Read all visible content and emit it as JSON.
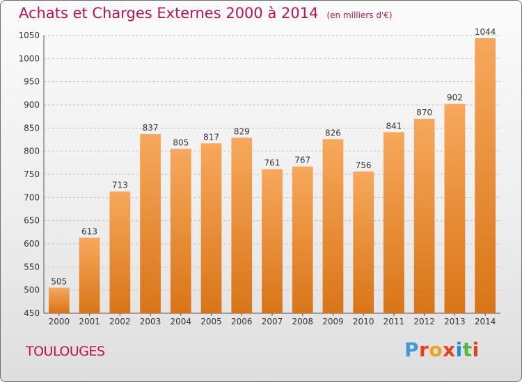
{
  "title": "Achats et Charges Externes 2000 à 2014",
  "subtitle": "(en milliers d'€)",
  "location": "TOULOUGES",
  "brand": {
    "letters": [
      "P",
      "r",
      "o",
      "x",
      "i",
      "t",
      "i"
    ],
    "colors": [
      "#3d9ad6",
      "#e83f1f",
      "#f0a318",
      "#e83f1f",
      "#1a8fdc",
      "#58b738",
      "#e83f1f"
    ]
  },
  "colors": {
    "title": "#c0114f",
    "bar_top": "#f7a85c",
    "bar_bottom": "#d97517",
    "grid": "#bfbfbf"
  },
  "chart_data": {
    "type": "bar",
    "categories": [
      "2000",
      "2001",
      "2002",
      "2003",
      "2004",
      "2005",
      "2006",
      "2007",
      "2008",
      "2009",
      "2010",
      "2011",
      "2012",
      "2013",
      "2014"
    ],
    "values": [
      505,
      613,
      713,
      837,
      805,
      817,
      829,
      761,
      767,
      826,
      756,
      841,
      870,
      902,
      1044
    ],
    "ylim": [
      450,
      1050
    ],
    "yticks": [
      450,
      500,
      550,
      600,
      650,
      700,
      750,
      800,
      850,
      900,
      950,
      1000,
      1050
    ],
    "grid": true,
    "data_labels": true
  }
}
